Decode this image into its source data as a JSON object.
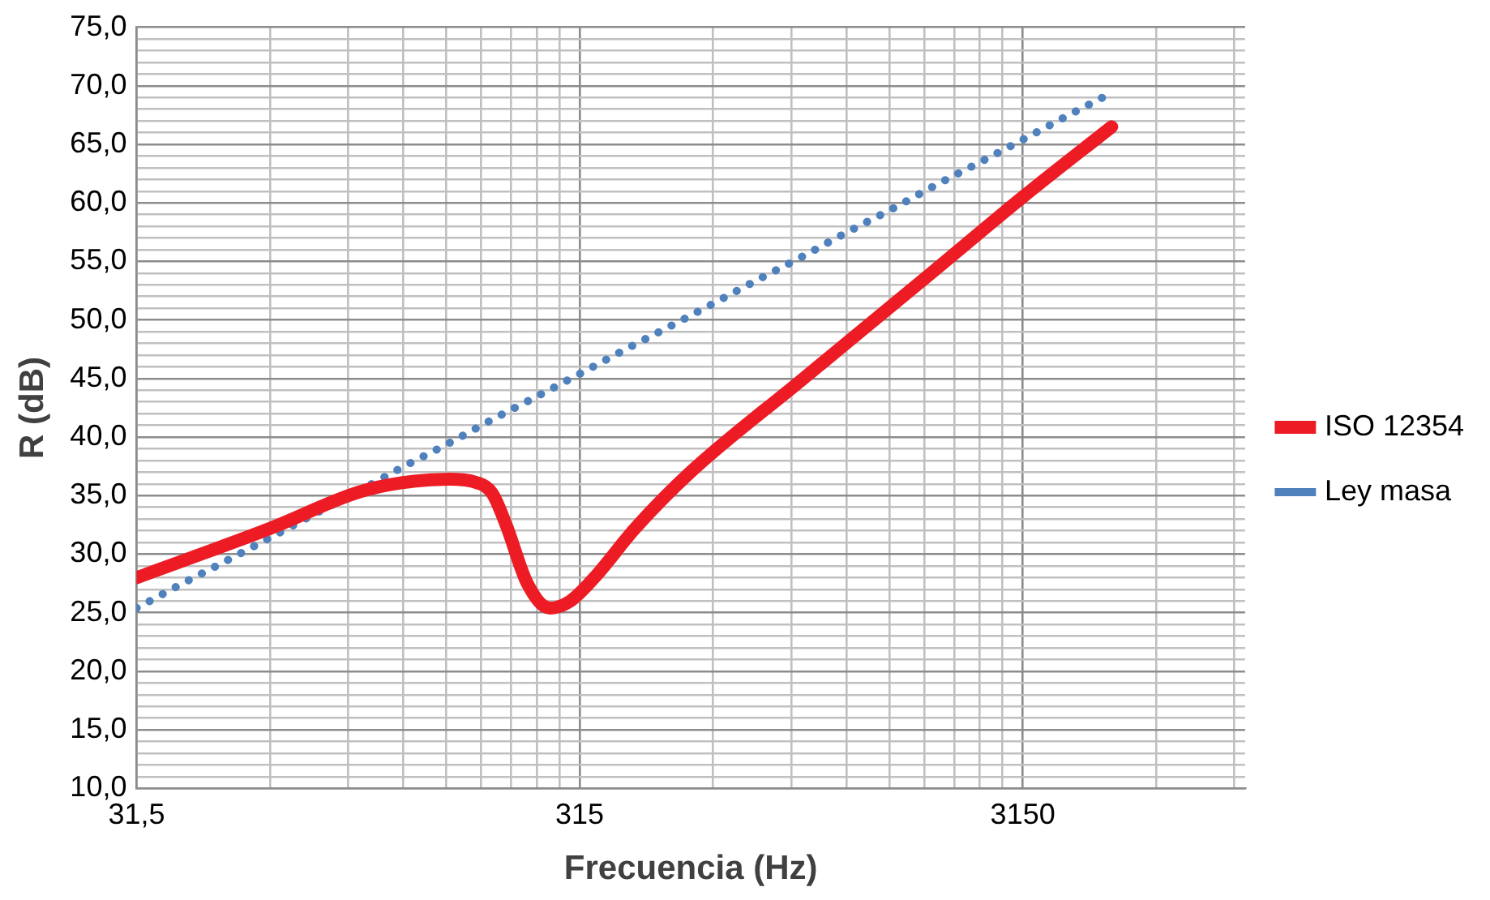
{
  "chart_data": {
    "type": "line",
    "xlabel": "Frecuencia (Hz)",
    "ylabel": "R (dB)",
    "log": "x",
    "grid": true,
    "legend": "right",
    "marker": "none",
    "xlim": [
      31.5,
      10000
    ],
    "xticks": [
      {
        "value": 31.5,
        "label": "31,5"
      },
      {
        "value": 63,
        "label": null
      },
      {
        "value": 94.5,
        "label": null
      },
      {
        "value": 126,
        "label": null
      },
      {
        "value": 157.5,
        "label": null
      },
      {
        "value": 189,
        "label": null
      },
      {
        "value": 220.5,
        "label": null
      },
      {
        "value": 252,
        "label": null
      },
      {
        "value": 283.5,
        "label": null
      },
      315,
      {
        "value": 630,
        "label": null
      },
      {
        "value": 945,
        "label": null
      },
      {
        "value": 1260,
        "label": null
      },
      {
        "value": 1575,
        "label": null
      },
      {
        "value": 1890,
        "label": null
      },
      {
        "value": 2205,
        "label": null
      },
      {
        "value": 2520,
        "label": null
      },
      {
        "value": 2835,
        "label": null
      },
      3150,
      {
        "value": 6300,
        "label": null
      },
      {
        "value": 9450,
        "label": null
      }
    ],
    "ylim": [
      10,
      75
    ],
    "yticks": [
      {
        "value": 10,
        "label": "10,0"
      },
      {
        "value": 11,
        "label": null
      },
      {
        "value": 12,
        "label": null
      },
      {
        "value": 13,
        "label": null
      },
      {
        "value": 14,
        "label": null
      },
      {
        "value": 15,
        "label": "15,0"
      },
      {
        "value": 16,
        "label": null
      },
      {
        "value": 17,
        "label": null
      },
      {
        "value": 18,
        "label": null
      },
      {
        "value": 19,
        "label": null
      },
      {
        "value": 20,
        "label": "20,0"
      },
      {
        "value": 21,
        "label": null
      },
      {
        "value": 22,
        "label": null
      },
      {
        "value": 23,
        "label": null
      },
      {
        "value": 24,
        "label": null
      },
      {
        "value": 25,
        "label": "25,0"
      },
      {
        "value": 26,
        "label": null
      },
      {
        "value": 27,
        "label": null
      },
      {
        "value": 28,
        "label": null
      },
      {
        "value": 29,
        "label": null
      },
      {
        "value": 30,
        "label": "30,0"
      },
      {
        "value": 31,
        "label": null
      },
      {
        "value": 32,
        "label": null
      },
      {
        "value": 33,
        "label": null
      },
      {
        "value": 34,
        "label": null
      },
      {
        "value": 35,
        "label": "35,0"
      },
      {
        "value": 36,
        "label": null
      },
      {
        "value": 37,
        "label": null
      },
      {
        "value": 38,
        "label": null
      },
      {
        "value": 39,
        "label": null
      },
      {
        "value": 40,
        "label": "40,0"
      },
      {
        "value": 41,
        "label": null
      },
      {
        "value": 42,
        "label": null
      },
      {
        "value": 43,
        "label": null
      },
      {
        "value": 44,
        "label": null
      },
      {
        "value": 45,
        "label": "45,0"
      },
      {
        "value": 46,
        "label": null
      },
      {
        "value": 47,
        "label": null
      },
      {
        "value": 48,
        "label": null
      },
      {
        "value": 49,
        "label": null
      },
      {
        "value": 50,
        "label": "50,0"
      },
      {
        "value": 51,
        "label": null
      },
      {
        "value": 52,
        "label": null
      },
      {
        "value": 53,
        "label": null
      },
      {
        "value": 54,
        "label": null
      },
      {
        "value": 55,
        "label": "55,0"
      },
      {
        "value": 56,
        "label": null
      },
      {
        "value": 57,
        "label": null
      },
      {
        "value": 58,
        "label": null
      },
      {
        "value": 59,
        "label": null
      },
      {
        "value": 60,
        "label": "60,0"
      },
      {
        "value": 61,
        "label": null
      },
      {
        "value": 62,
        "label": null
      },
      {
        "value": 63,
        "label": null
      },
      {
        "value": 64,
        "label": null
      },
      {
        "value": 65,
        "label": "65,0"
      },
      {
        "value": 66,
        "label": null
      },
      {
        "value": 67,
        "label": null
      },
      {
        "value": 68,
        "label": null
      },
      {
        "value": 69,
        "label": null
      },
      {
        "value": 70,
        "label": "70,0"
      },
      {
        "value": 71,
        "label": null
      },
      {
        "value": 72,
        "label": null
      },
      {
        "value": 73,
        "label": null
      },
      {
        "value": 74,
        "label": null
      },
      {
        "value": 75,
        "label": "75,0"
      }
    ],
    "series": [
      {
        "name": "ISO 12354",
        "color": "#ed1c24",
        "line_style": "solid",
        "x": [
          31.5,
          63,
          100,
          125,
          160,
          185,
          200,
          215,
          240,
          270,
          300,
          340,
          420,
          560,
          1000,
          2000,
          3150,
          5000
        ],
        "values": [
          28.0,
          32.2,
          35.3,
          36.1,
          36.4,
          36.1,
          35.2,
          32.5,
          27.5,
          25.4,
          26.0,
          28.0,
          32.2,
          37.0,
          44.9,
          54.3,
          60.5,
          66.5
        ]
      },
      {
        "name": "Ley masa",
        "color": "#4f81bd",
        "line_style": "dotted",
        "x": [
          31.5,
          40,
          50,
          63,
          80,
          100,
          125,
          160,
          200,
          250,
          315,
          400,
          500,
          630,
          800,
          1000,
          1250,
          1600,
          2000,
          2500,
          3150,
          4000,
          5000
        ],
        "values": [
          25.4,
          27.5,
          29.4,
          31.4,
          33.5,
          35.4,
          37.4,
          39.5,
          41.5,
          43.4,
          45.4,
          47.5,
          49.4,
          51.4,
          53.5,
          55.4,
          57.4,
          59.5,
          61.5,
          63.4,
          65.4,
          67.5,
          69.4
        ]
      }
    ]
  }
}
